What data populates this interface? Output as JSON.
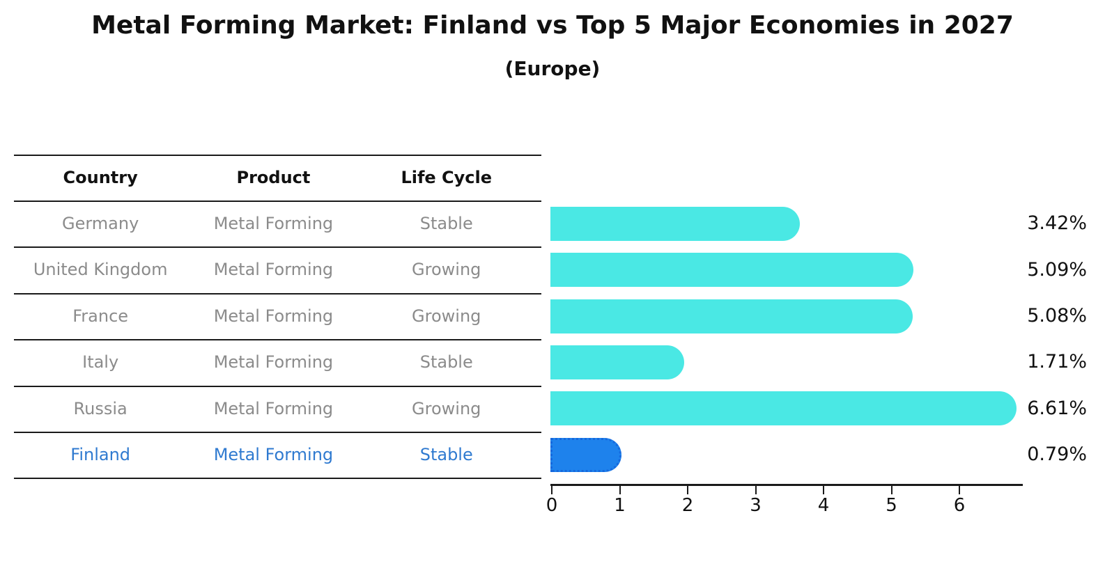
{
  "title": "Metal Forming Market: Finland vs Top 5 Major Economies in 2027",
  "subtitle": "(Europe)",
  "table": {
    "headers": [
      "Country",
      "Product",
      "Life Cycle"
    ],
    "rows": [
      {
        "country": "Germany",
        "product": "Metal Forming",
        "life_cycle": "Stable",
        "highlighted": false
      },
      {
        "country": "United Kingdom",
        "product": "Metal Forming",
        "life_cycle": "Growing",
        "highlighted": false
      },
      {
        "country": "France",
        "product": "Metal Forming",
        "life_cycle": "Growing",
        "highlighted": false
      },
      {
        "country": "Italy",
        "product": "Metal Forming",
        "life_cycle": "Stable",
        "highlighted": false
      },
      {
        "country": "Russia",
        "product": "Metal Forming",
        "life_cycle": "Growing",
        "highlighted": false
      },
      {
        "country": "Finland",
        "product": "Metal Forming",
        "life_cycle": "Stable",
        "highlighted": true
      }
    ]
  },
  "chart_data": {
    "type": "bar",
    "orientation": "horizontal",
    "title": "Metal Forming Market: Finland vs Top 5 Major Economies in 2027",
    "subtitle": "(Europe)",
    "categories": [
      "Germany",
      "United Kingdom",
      "France",
      "Italy",
      "Russia",
      "Finland"
    ],
    "values": [
      3.42,
      5.09,
      5.08,
      1.71,
      6.61,
      0.79
    ],
    "value_labels": [
      "3.42%",
      "5.09%",
      "5.08%",
      "1.71%",
      "6.61%",
      "0.79%"
    ],
    "unit": "%",
    "xlabel": "",
    "ylabel": "",
    "x_ticks": [
      0,
      1,
      2,
      3,
      4,
      5,
      6
    ],
    "xlim": [
      0,
      6.95
    ],
    "grid": false,
    "legend": "none",
    "bar_color": "#4AE8E4",
    "highlight_index": 5,
    "highlight_color": "#1E82EC",
    "highlight_border_color": "#1668dd",
    "highlight_border_style": "dotted"
  },
  "colors": {
    "title_text": "#111111",
    "header_text": "#111111",
    "row_text": "#8b8b8b",
    "highlight_text": "#2f7ad0",
    "axis_line": "#1a1a1a",
    "value_text": "#111111"
  }
}
